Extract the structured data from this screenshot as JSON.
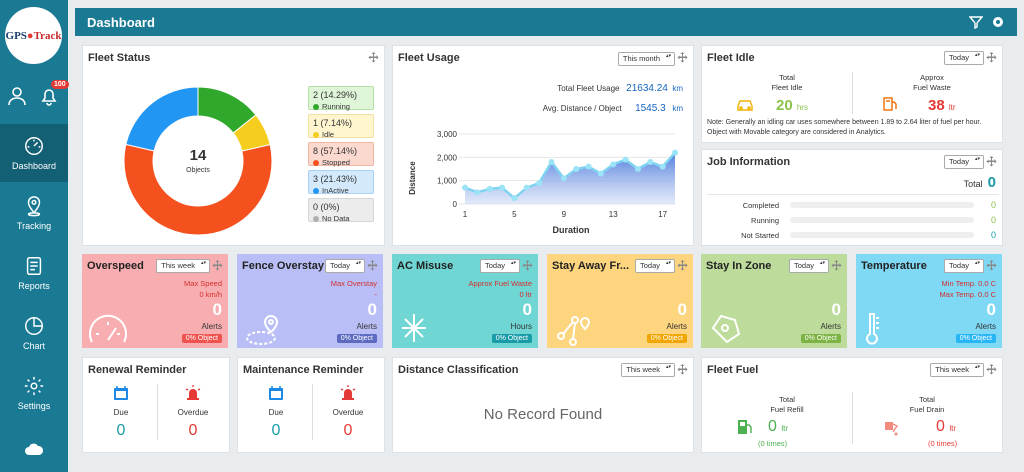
{
  "app": {
    "logo": {
      "part1": "GPS",
      "part2": "Track"
    },
    "badge": "100"
  },
  "sidebar": {
    "items": [
      {
        "label": "Dashboard",
        "icon": "speedometer-icon",
        "active": true
      },
      {
        "label": "Tracking",
        "icon": "location-pin-icon"
      },
      {
        "label": "Reports",
        "icon": "report-icon"
      },
      {
        "label": "Chart",
        "icon": "pie-chart-icon"
      },
      {
        "label": "Settings",
        "icon": "gear-icon"
      }
    ]
  },
  "header": {
    "title": "Dashboard"
  },
  "fleet_status": {
    "title": "Fleet Status",
    "total": "14",
    "total_label": "Objects",
    "legend": [
      {
        "value": "2 (14.29%)",
        "label": "Running",
        "color": "#2fa82b",
        "bg": "#dff5d8",
        "border": "#b4e2a6"
      },
      {
        "value": "1 (7.14%)",
        "label": "Idle",
        "color": "#f4cd1f",
        "bg": "#fff6cf",
        "border": "#f1e1a0"
      },
      {
        "value": "8 (57.14%)",
        "label": "Stopped",
        "color": "#f4511e",
        "bg": "#fbd9cf",
        "border": "#f2b7a4"
      },
      {
        "value": "3 (21.43%)",
        "label": "InActive",
        "color": "#2196f3",
        "bg": "#d4eafc",
        "border": "#a8d2f5"
      },
      {
        "value": "0 (0%)",
        "label": "No Data",
        "color": "#b0b0b0",
        "bg": "#ececec",
        "border": "#d6d6d6"
      }
    ]
  },
  "fleet_usage": {
    "title": "Fleet Usage",
    "period": "This month",
    "total_label": "Total Fleet Usage",
    "total_value": "21634.24",
    "total_unit": "km",
    "avg_label": "Avg. Distance / Object",
    "avg_value": "1545.3",
    "avg_unit": "km",
    "chart_data": {
      "type": "area",
      "xlabel": "Duration",
      "ylabel": "Distance",
      "ylim": [
        0,
        3000
      ],
      "yticks": [
        "3,000",
        "2,000",
        "1,000",
        "0"
      ],
      "xticks": [
        "1",
        "5",
        "9",
        "13",
        "17"
      ],
      "x": [
        1,
        2,
        3,
        4,
        5,
        6,
        7,
        8,
        9,
        10,
        11,
        12,
        13,
        14,
        15,
        16,
        17,
        18
      ],
      "values": [
        700,
        500,
        650,
        700,
        250,
        700,
        900,
        1800,
        1100,
        1500,
        1600,
        1300,
        1700,
        1900,
        1500,
        1800,
        1600,
        2200
      ]
    }
  },
  "fleet_idle": {
    "title": "Fleet Idle",
    "period": "Today",
    "left": {
      "label1": "Total",
      "label2": "Fleet Idle",
      "value": "20",
      "unit": "hrs"
    },
    "right": {
      "label1": "Approx",
      "label2": "Fuel Waste",
      "value": "38",
      "unit": "ltr"
    },
    "note": "Note: Generally an idling car uses somewhere between 1.89 to 2.64 liter of fuel per hour. Object with Movable category are considered in Analytics."
  },
  "job_info": {
    "title": "Job Information",
    "period": "Today",
    "total_label": "Total",
    "total_value": "0",
    "rows": [
      {
        "label": "Completed",
        "value": "0",
        "color": "#8bc34a"
      },
      {
        "label": "Running",
        "value": "0",
        "color": "#8bc34a"
      },
      {
        "label": "Not Started",
        "value": "0",
        "color": "#1a9ba8"
      }
    ]
  },
  "cards": [
    {
      "title": "Overspeed",
      "period": "This week",
      "info1": "Max Speed",
      "info2": "0 km/h",
      "value": "0",
      "unit": "Alerts",
      "object": "0% Object",
      "bg": "#f8aeb0",
      "badge": "#ef5350",
      "info_color": "#d32f2f",
      "icon": "speedometer-icon"
    },
    {
      "title": "Fence Overstay",
      "period": "Today",
      "info1": "Max Overstay",
      "info2": "-",
      "value": "0",
      "unit": "Alerts",
      "object": "0% Object",
      "bg": "#b9bff6",
      "badge": "#5c6bc0",
      "info_color": "#d32f2f",
      "icon": "geofence-icon"
    },
    {
      "title": "AC Misuse",
      "period": "Today",
      "info1": "Approx Fuel Waste",
      "info2": "0 ltr",
      "value": "0",
      "unit": "Hours",
      "object": "0% Object",
      "bg": "#6fd6d3",
      "badge": "#1a9ba8",
      "info_color": "#d32f2f",
      "icon": "snowflake-icon"
    },
    {
      "title": "Stay Away Fr...",
      "period": "Today",
      "info1": "",
      "info2": "",
      "value": "0",
      "unit": "Alerts",
      "object": "0% Object",
      "bg": "#fcd57e",
      "badge": "#f0a500",
      "info_color": "#d32f2f",
      "icon": "route-icon"
    },
    {
      "title": "Stay In Zone",
      "period": "Today",
      "info1": "",
      "info2": "",
      "value": "0",
      "unit": "Alerts",
      "object": "0% Object",
      "bg": "#bddb9a",
      "badge": "#7cb342",
      "info_color": "#d32f2f",
      "icon": "zone-icon"
    },
    {
      "title": "Temperature",
      "period": "Today",
      "info1": "Min Temp. 0.0 C",
      "info2": "Max Temp. 0.0 C",
      "value": "0",
      "unit": "Alerts",
      "object": "0% Object",
      "bg": "#7fd8f4",
      "badge": "#29b6f6",
      "info_color": "#d32f2f",
      "icon": "thermometer-icon"
    }
  ],
  "renewal": {
    "title": "Renewal Reminder",
    "due_label": "Due",
    "due_value": "0",
    "overdue_label": "Overdue",
    "overdue_value": "0"
  },
  "maintenance": {
    "title": "Maintenance Reminder",
    "due_label": "Due",
    "due_value": "0",
    "overdue_label": "Overdue",
    "overdue_value": "0"
  },
  "distance_class": {
    "title": "Distance Classification",
    "period": "This week",
    "empty": "No Record Found"
  },
  "fleet_fuel": {
    "title": "Fleet Fuel",
    "period": "This week",
    "left": {
      "label1": "Total",
      "label2": "Fuel Refill",
      "value": "0",
      "unit": "ltr",
      "times": "(0 times)"
    },
    "right": {
      "label1": "Total",
      "label2": "Fuel Drain",
      "value": "0",
      "unit": "ltr",
      "times": "(0 times)"
    }
  }
}
